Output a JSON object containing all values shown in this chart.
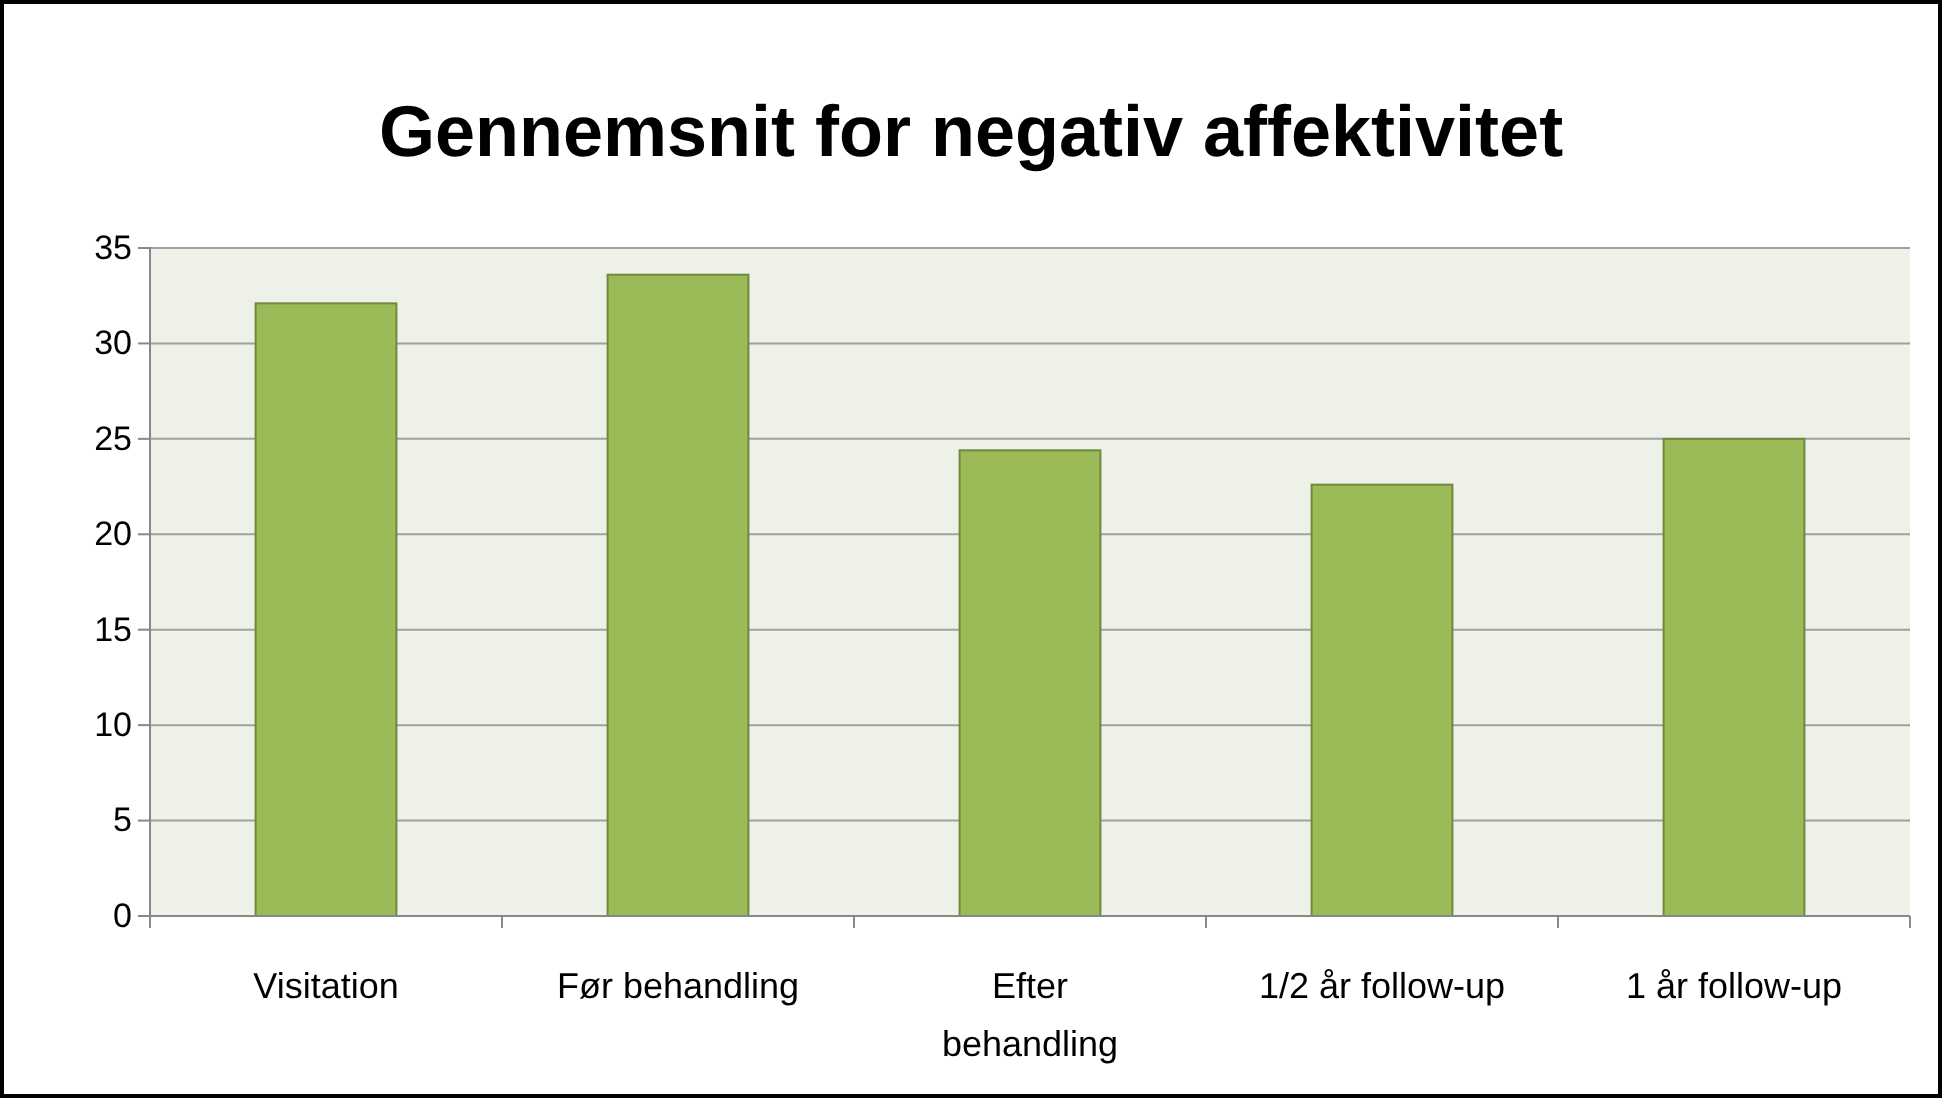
{
  "chart_data": {
    "type": "bar",
    "title": "Gennemsnit for negativ affektivitet",
    "categories": [
      "Visitation",
      "Før behandling",
      "Efter behandling",
      "1/2 år follow-up",
      "1 år follow-up"
    ],
    "values": [
      32.1,
      33.6,
      24.4,
      22.6,
      25.0
    ],
    "color": "#9bbb59",
    "ylim": [
      0,
      35
    ],
    "yticks": [
      0,
      5,
      10,
      15,
      20,
      25,
      30,
      35
    ],
    "grid": "y"
  }
}
